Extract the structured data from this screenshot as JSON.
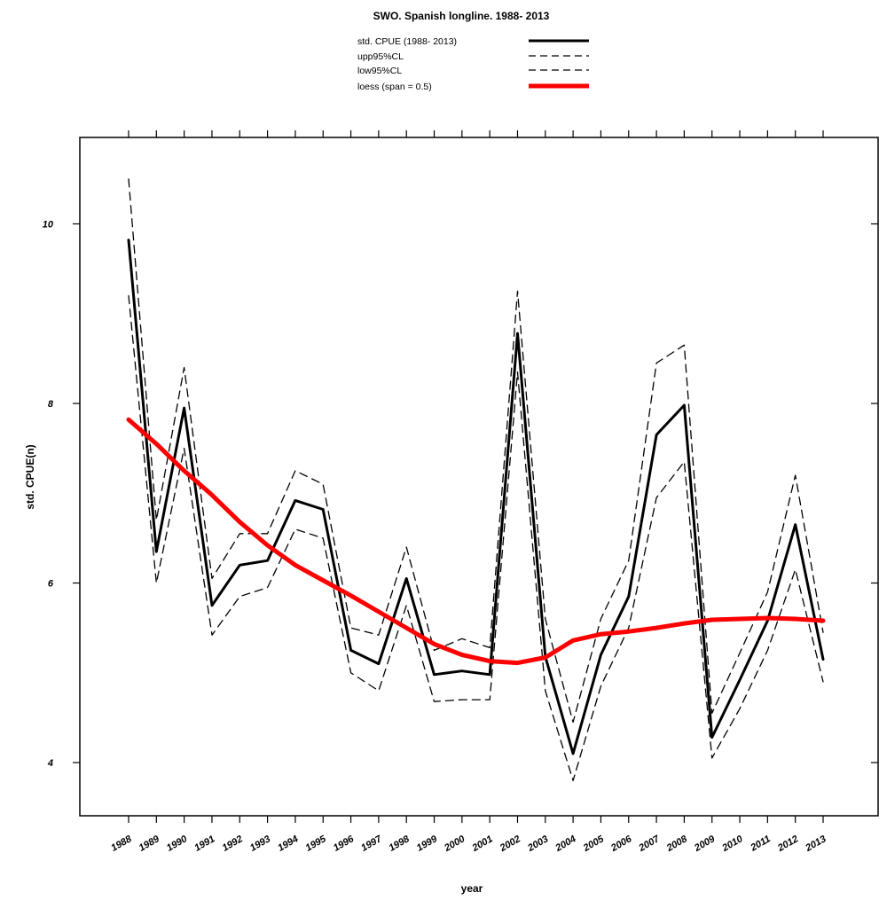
{
  "chart_data": {
    "type": "line",
    "title": "SWO. Spanish longline. 1988- 2013",
    "xlabel": "year",
    "ylabel": "std. CPUE(n)",
    "x": [
      "1988",
      "1989",
      "1990",
      "1991",
      "1992",
      "1993",
      "1994",
      "1995",
      "1996",
      "1997",
      "1998",
      "1999",
      "2000",
      "2001",
      "2002",
      "2003",
      "2004",
      "2005",
      "2006",
      "2007",
      "2008",
      "2009",
      "2010",
      "2011",
      "2012",
      "2013"
    ],
    "yticks": [
      4,
      6,
      8,
      10
    ],
    "ylim": [
      3.3,
      10.95
    ],
    "grid": false,
    "legend_position": "top",
    "series": [
      {
        "name": "std. CPUE (1988- 2013)",
        "style": "solid",
        "color": "#000000",
        "width": 3,
        "values": [
          9.82,
          6.35,
          7.95,
          5.75,
          6.2,
          6.25,
          6.92,
          6.82,
          5.25,
          5.1,
          6.05,
          4.98,
          5.02,
          4.98,
          8.78,
          5.18,
          4.1,
          5.2,
          5.85,
          7.65,
          7.98,
          4.28,
          4.92,
          5.58,
          6.65,
          5.15
        ]
      },
      {
        "name": "upp95%CL",
        "style": "dashed",
        "color": "#000000",
        "width": 1.3,
        "values": [
          10.5,
          6.7,
          8.4,
          6.05,
          6.55,
          6.55,
          7.25,
          7.1,
          5.5,
          5.42,
          6.4,
          5.25,
          5.38,
          5.28,
          9.25,
          5.6,
          4.45,
          5.6,
          6.25,
          8.45,
          8.65,
          4.55,
          5.22,
          5.9,
          7.2,
          5.45
        ]
      },
      {
        "name": "low95%CL",
        "style": "dashed",
        "color": "#000000",
        "width": 1.3,
        "values": [
          9.2,
          6.0,
          7.5,
          5.42,
          5.85,
          5.95,
          6.6,
          6.5,
          5.0,
          4.8,
          5.75,
          4.68,
          4.7,
          4.7,
          8.35,
          4.8,
          3.8,
          4.85,
          5.5,
          6.95,
          7.35,
          4.05,
          4.6,
          5.25,
          6.15,
          4.9
        ]
      },
      {
        "name": "loess (span = 0.5)",
        "style": "solid",
        "color": "#ff0000",
        "width": 5,
        "values": [
          7.82,
          7.55,
          7.25,
          6.98,
          6.68,
          6.42,
          6.2,
          6.03,
          5.86,
          5.68,
          5.5,
          5.32,
          5.2,
          5.13,
          5.11,
          5.17,
          5.36,
          5.43,
          5.46,
          5.5,
          5.55,
          5.59,
          5.6,
          5.61,
          5.6,
          5.58
        ]
      }
    ]
  }
}
